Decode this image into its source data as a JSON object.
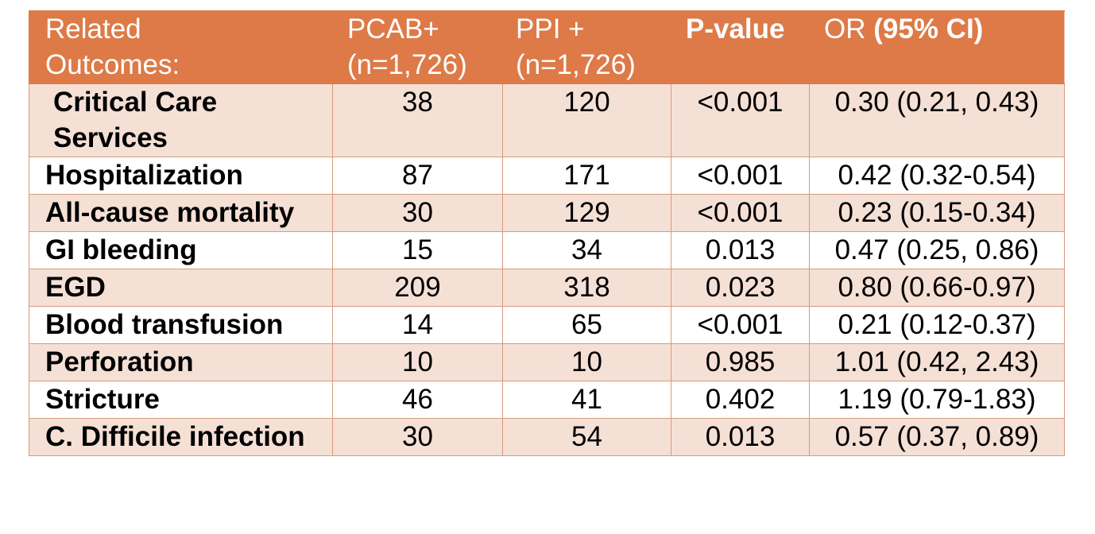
{
  "header": {
    "col0": [
      "Related",
      "Outcomes:"
    ],
    "col1": [
      "PCAB+",
      "(n=1,726)"
    ],
    "col2": [
      "PPI +",
      "(n=1,726)"
    ],
    "col3": [
      "P-value"
    ],
    "col4_prefix": "OR ",
    "col4_bold": "(95% CI)"
  },
  "rows": [
    {
      "outcome": "Critical Care Services",
      "pcab": "38",
      "ppi": "120",
      "p": "<0.001",
      "or": "0.30 (0.21, 0.43)"
    },
    {
      "outcome": "Hospitalization",
      "pcab": "87",
      "ppi": "171",
      "p": "<0.001",
      "or": "0.42 (0.32-0.54)"
    },
    {
      "outcome": "All-cause mortality",
      "pcab": "30",
      "ppi": "129",
      "p": "<0.001",
      "or": "0.23 (0.15-0.34)"
    },
    {
      "outcome": "GI bleeding",
      "pcab": "15",
      "ppi": "34",
      "p": "0.013",
      "or": "0.47 (0.25, 0.86)"
    },
    {
      "outcome": "EGD",
      "pcab": "209",
      "ppi": "318",
      "p": "0.023",
      "or": "0.80 (0.66-0.97)"
    },
    {
      "outcome": "Blood transfusion",
      "pcab": "14",
      "ppi": "65",
      "p": "<0.001",
      "or": "0.21 (0.12-0.37)"
    },
    {
      "outcome": "Perforation",
      "pcab": "10",
      "ppi": "10",
      "p": "0.985",
      "or": "1.01 (0.42, 2.43)"
    },
    {
      "outcome": "Stricture",
      "pcab": "46",
      "ppi": "41",
      "p": "0.402",
      "or": "1.19 (0.79-1.83)"
    },
    {
      "outcome": "C. Difficile infection",
      "pcab": "30",
      "ppi": "54",
      "p": "0.013",
      "or": "0.57 (0.37, 0.89)"
    }
  ],
  "colors": {
    "header_bg": "#dd7a47",
    "row_tint": "#f5e0d6",
    "row_plain": "#ffffff"
  }
}
